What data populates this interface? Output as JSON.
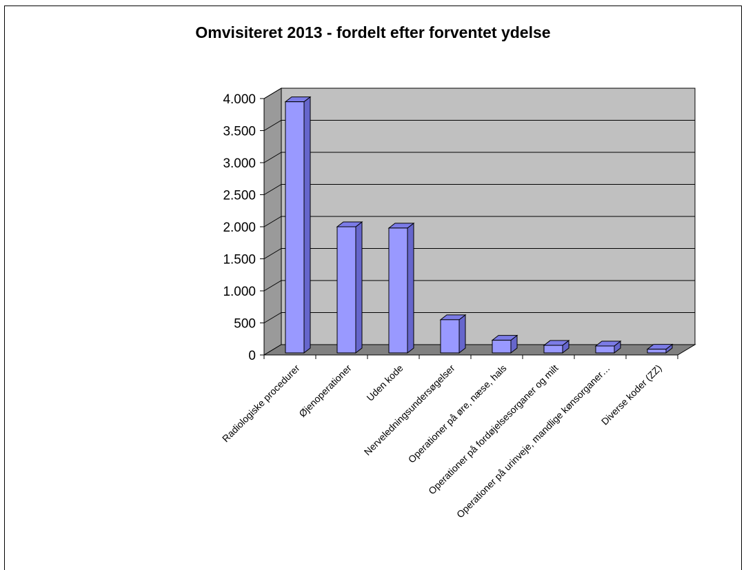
{
  "chart_data": {
    "type": "bar",
    "title": "Omvisiteret 2013 - fordelt efter forventet ydelse",
    "categories": [
      "Radiologiske procedurer",
      "Øjenoperationer",
      "Uden kode",
      "Nerveledningsundersøgelser",
      "Operationer på øre, næse, hals",
      "Operationer på fordøjelsesorganer og milt",
      "Operationer på urinveje, mandlige kønsorganer…",
      "Diverse koder (ZZ)"
    ],
    "values": [
      3950,
      2000,
      1980,
      550,
      230,
      150,
      140,
      90
    ],
    "ylim": [
      0,
      4000
    ],
    "yticks": [
      0,
      500,
      1000,
      1500,
      2000,
      2500,
      3000,
      3500,
      4000
    ],
    "ytick_labels": [
      "0",
      "500",
      "1.000",
      "1.500",
      "2.000",
      "2.500",
      "3.000",
      "3.500",
      "4.000"
    ],
    "xlabel": "",
    "ylabel": "",
    "grid": true,
    "legend": "none",
    "colors": {
      "bar_front": "#9999ff",
      "bar_side": "#6666cc",
      "bar_top": "#7b7be6",
      "plot_back": "#c0c0c0",
      "plot_floor": "#808080",
      "plot_wall": "#9a9a9a"
    }
  }
}
